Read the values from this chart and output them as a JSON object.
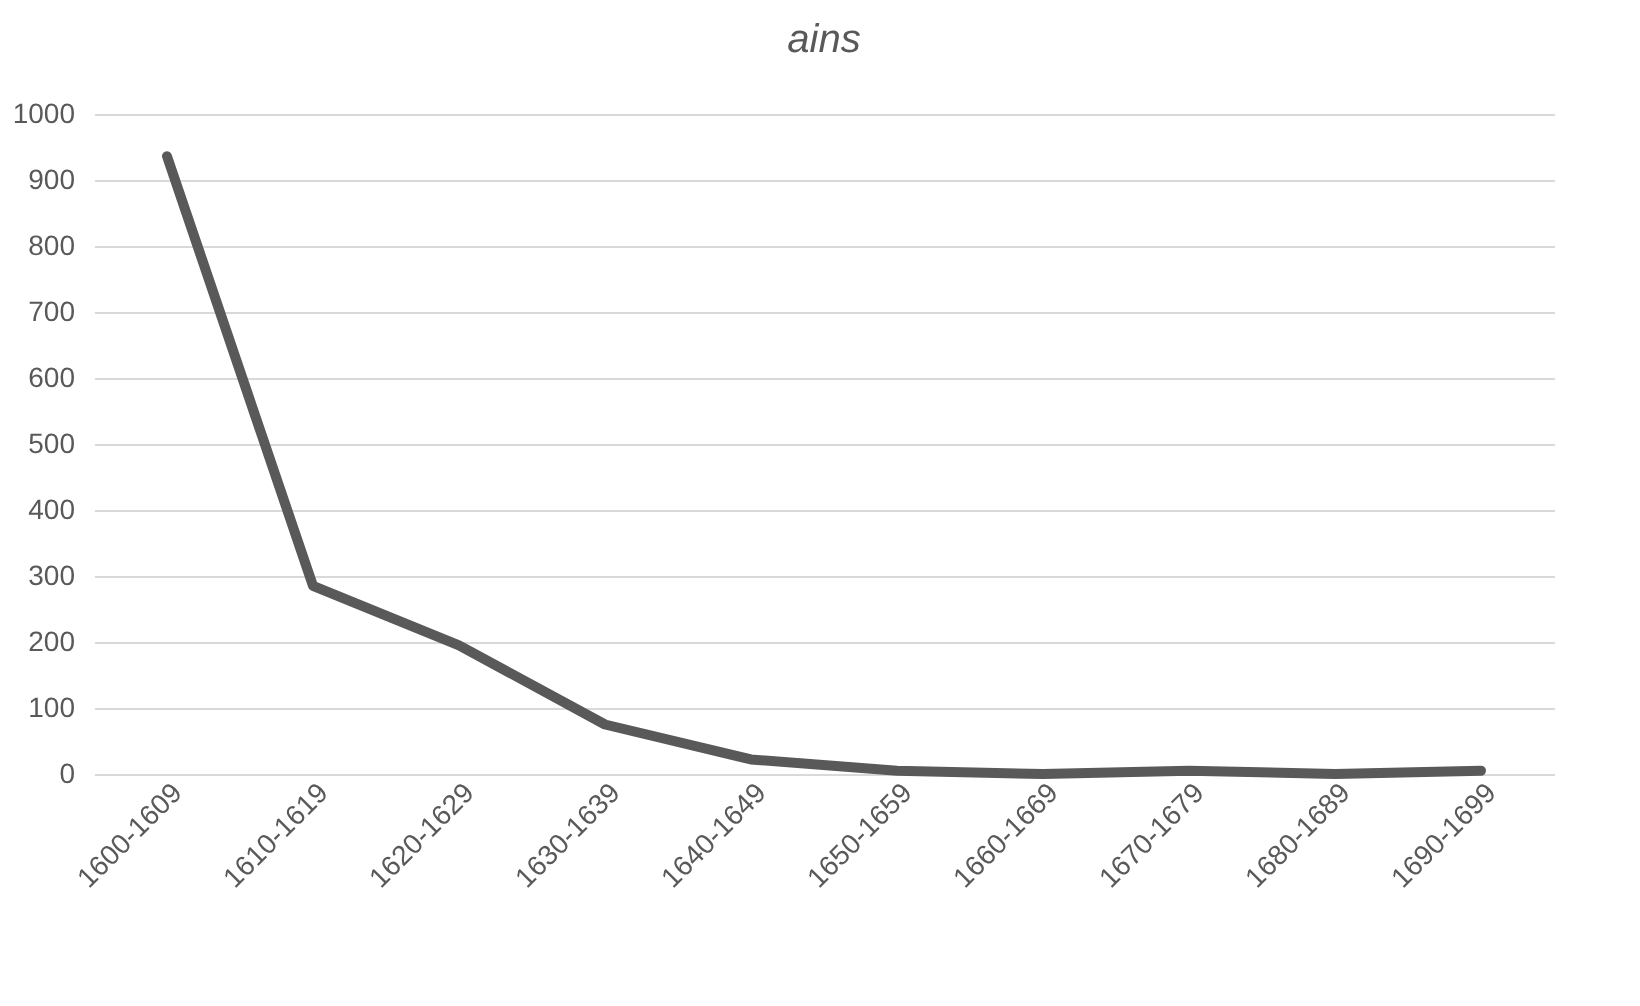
{
  "chart_data": {
    "type": "line",
    "title": "ains",
    "categories": [
      "1600-1609",
      "1610-1619",
      "1620-1629",
      "1630-1639",
      "1640-1649",
      "1650-1659",
      "1660-1669",
      "1670-1679",
      "1680-1689",
      "1690-1699"
    ],
    "series": [
      {
        "color": "#595959",
        "values": [
          936,
          285,
          195,
          75,
          22,
          5,
          0,
          5,
          0,
          5
        ]
      }
    ],
    "ylim": [
      0,
      1000
    ],
    "yticks": [
      0,
      100,
      200,
      300,
      400,
      500,
      600,
      700,
      800,
      900,
      1000
    ],
    "grid": "y",
    "marker": "none",
    "line_style": "solid"
  }
}
